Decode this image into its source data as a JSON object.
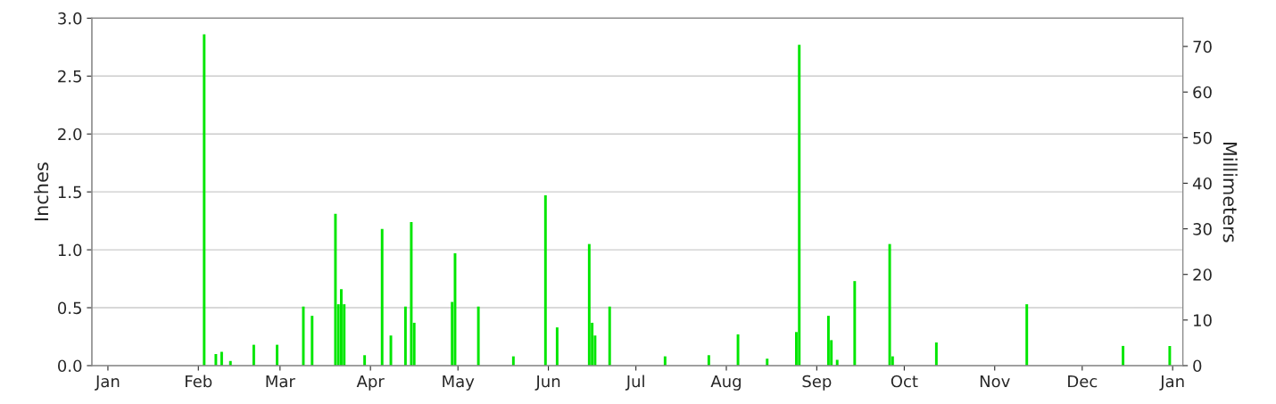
{
  "chart_data": {
    "type": "bar",
    "ylabel": "Inches",
    "y2label": "Millimeters",
    "categories": [
      null,
      null,
      null,
      null,
      null,
      "Jan",
      null,
      null,
      null,
      null,
      null,
      null,
      null,
      null,
      null,
      null,
      null,
      null,
      null,
      null,
      null,
      null,
      null,
      null,
      null,
      null,
      null,
      null,
      null,
      null,
      null,
      null,
      null,
      null,
      null,
      null,
      "Feb",
      null,
      null,
      null,
      null,
      null,
      null,
      null,
      null,
      null,
      null,
      null,
      null,
      null,
      null,
      null,
      null,
      null,
      null,
      null,
      null,
      null,
      null,
      null,
      null,
      null,
      null,
      null,
      "Mar",
      null,
      null,
      null,
      null,
      null,
      null,
      null,
      null,
      null,
      null,
      null,
      null,
      null,
      null,
      null,
      null,
      null,
      null,
      null,
      null,
      null,
      null,
      null,
      null,
      null,
      null,
      null,
      null,
      null,
      null,
      "Apr",
      null,
      null,
      null,
      null,
      null,
      null,
      null,
      null,
      null,
      null,
      null,
      null,
      null,
      null,
      null,
      null,
      null,
      null,
      null,
      null,
      null,
      null,
      null,
      null,
      null,
      null,
      null,
      null,
      null,
      "May",
      null,
      null,
      null,
      null,
      null,
      null,
      null,
      null,
      null,
      null,
      null,
      null,
      null,
      null,
      null,
      null,
      null,
      null,
      null,
      null,
      null,
      null,
      null,
      null,
      null,
      null,
      null,
      null,
      null,
      null,
      "Jun",
      null,
      null,
      null,
      null,
      null,
      null,
      null,
      null,
      null,
      null,
      null,
      null,
      null,
      null,
      null,
      null,
      null,
      null,
      null,
      null,
      null,
      null,
      null,
      null,
      null,
      null,
      null,
      null,
      null,
      "Jul",
      null,
      null,
      null,
      null,
      null,
      null,
      null,
      null,
      null,
      null,
      null,
      null,
      null,
      null,
      null,
      null,
      null,
      null,
      null,
      null,
      null,
      null,
      null,
      null,
      null,
      null,
      null,
      null,
      null,
      null,
      "Aug",
      null,
      null,
      null,
      null,
      null,
      null,
      null,
      null,
      null,
      null,
      null,
      null,
      null,
      null,
      null,
      null,
      null,
      null,
      null,
      null,
      null,
      null,
      null,
      null,
      null,
      null,
      null,
      null,
      null,
      null,
      "Sep",
      null,
      null,
      null,
      null,
      null,
      null,
      null,
      null,
      null,
      null,
      null,
      null,
      null,
      null,
      null,
      null,
      null,
      null,
      null,
      null,
      null,
      null,
      null,
      null,
      null,
      null,
      null,
      null,
      null,
      "Oct",
      null,
      null,
      null,
      null,
      null,
      null,
      null,
      null,
      null,
      null,
      null,
      null,
      null,
      null,
      null,
      null,
      null,
      null,
      null,
      null,
      null,
      null,
      null,
      null,
      null,
      null,
      null,
      null,
      null,
      null,
      "Nov",
      null,
      null,
      null,
      null,
      null,
      null,
      null,
      null,
      null,
      null,
      null,
      null,
      null,
      null,
      null,
      null,
      null,
      null,
      null,
      null,
      null,
      null,
      null,
      null,
      null,
      null,
      null,
      null,
      null,
      "Dec",
      null,
      null,
      null,
      null,
      null,
      null,
      null,
      null,
      null,
      null,
      null,
      null,
      null,
      null,
      null,
      null,
      null,
      null,
      null,
      null,
      null,
      null,
      null,
      null,
      null,
      null,
      null,
      null,
      null,
      null,
      "Jan",
      null,
      null,
      null
    ],
    "series": [
      {
        "color": "#00e600",
        "values": [
          null,
          null,
          null,
          null,
          null,
          null,
          null,
          null,
          null,
          null,
          null,
          null,
          null,
          null,
          null,
          null,
          null,
          null,
          null,
          null,
          null,
          null,
          null,
          null,
          null,
          null,
          null,
          null,
          null,
          null,
          null,
          null,
          null,
          null,
          null,
          null,
          null,
          null,
          2.86,
          null,
          null,
          null,
          0.1,
          null,
          0.12,
          null,
          null,
          0.04,
          null,
          null,
          null,
          null,
          null,
          null,
          null,
          0.18,
          null,
          null,
          null,
          null,
          null,
          null,
          null,
          0.18,
          null,
          null,
          null,
          null,
          null,
          null,
          null,
          null,
          0.51,
          null,
          null,
          0.43,
          null,
          null,
          null,
          null,
          null,
          null,
          null,
          1.31,
          0.53,
          0.66,
          0.53,
          null,
          null,
          null,
          null,
          null,
          null,
          0.09,
          null,
          null,
          null,
          null,
          null,
          1.18,
          null,
          null,
          0.26,
          null,
          null,
          null,
          null,
          0.51,
          null,
          1.24,
          0.37,
          null,
          null,
          null,
          null,
          null,
          null,
          null,
          null,
          null,
          null,
          null,
          null,
          0.55,
          0.97,
          null,
          null,
          null,
          null,
          null,
          null,
          null,
          0.51,
          null,
          null,
          null,
          null,
          null,
          null,
          null,
          null,
          null,
          null,
          null,
          0.08,
          null,
          null,
          null,
          null,
          null,
          null,
          null,
          null,
          null,
          null,
          1.47,
          null,
          null,
          null,
          0.33,
          null,
          null,
          null,
          null,
          null,
          null,
          null,
          null,
          null,
          null,
          1.05,
          0.37,
          0.26,
          null,
          null,
          null,
          null,
          0.51,
          null,
          null,
          null,
          null,
          null,
          null,
          null,
          null,
          null,
          null,
          null,
          null,
          null,
          null,
          null,
          null,
          null,
          null,
          0.08,
          null,
          null,
          null,
          null,
          null,
          null,
          null,
          null,
          null,
          null,
          null,
          null,
          null,
          null,
          0.09,
          null,
          null,
          null,
          null,
          null,
          null,
          null,
          null,
          null,
          0.27,
          null,
          null,
          null,
          null,
          null,
          null,
          null,
          null,
          null,
          0.06,
          null,
          null,
          null,
          null,
          null,
          null,
          null,
          null,
          null,
          0.29,
          2.77,
          null,
          null,
          null,
          null,
          null,
          null,
          null,
          null,
          null,
          0.43,
          0.22,
          null,
          0.05,
          null,
          null,
          null,
          null,
          null,
          0.73,
          null,
          null,
          null,
          null,
          null,
          null,
          null,
          null,
          null,
          null,
          null,
          1.05,
          0.08,
          null,
          null,
          null,
          null,
          null,
          null,
          null,
          null,
          null,
          null,
          null,
          null,
          null,
          null,
          0.2,
          null,
          null,
          null,
          null,
          null,
          null,
          null,
          null,
          null,
          null,
          null,
          null,
          null,
          null,
          null,
          null,
          null,
          null,
          null,
          null,
          null,
          null,
          null,
          null,
          null,
          null,
          null,
          null,
          null,
          null,
          0.53,
          null,
          null,
          null,
          null,
          null,
          null,
          null,
          null,
          null,
          null,
          null,
          null,
          null,
          null,
          null,
          null,
          null,
          null,
          null,
          null,
          null,
          null,
          null,
          null,
          null,
          null,
          null,
          null,
          null,
          null,
          null,
          null,
          0.17,
          null,
          null,
          null,
          null,
          null,
          null,
          null,
          null,
          null,
          null,
          null,
          null,
          null,
          null,
          null,
          0.17,
          null,
          null,
          null,
          null
        ]
      }
    ],
    "ylim": [
      0,
      3.0
    ],
    "yticks": [
      {
        "value": 0,
        "label": "0.0"
      },
      {
        "value": 0.5,
        "label": "0.5"
      },
      {
        "value": 1.0,
        "label": "1.0"
      },
      {
        "value": 1.5,
        "label": "1.5"
      },
      {
        "value": 2.0,
        "label": "2.0"
      },
      {
        "value": 2.5,
        "label": "2.5"
      },
      {
        "value": 3.0,
        "label": "3.0"
      }
    ],
    "y2lim": [
      0,
      76.2
    ],
    "y2ticks": [
      0,
      10,
      20,
      30,
      40,
      50,
      60,
      70
    ],
    "grid": "y"
  }
}
